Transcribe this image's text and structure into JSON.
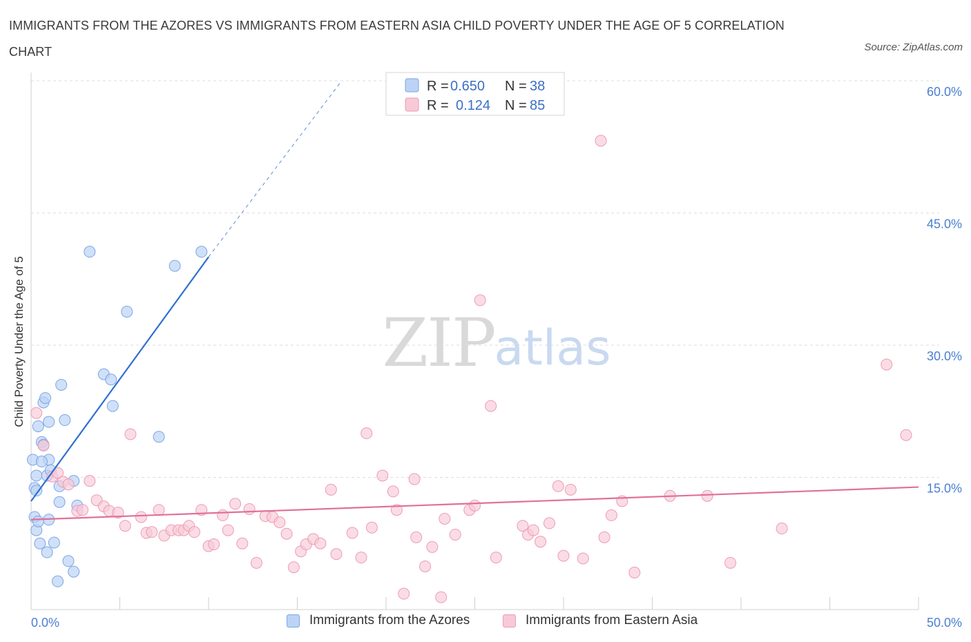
{
  "title": "IMMIGRANTS FROM THE AZORES VS IMMIGRANTS FROM EASTERN ASIA CHILD POVERTY UNDER THE AGE OF 5 CORRELATION CHART",
  "source": "Source: ZipAtlas.com",
  "watermark": {
    "zip": "ZIP",
    "atlas": "atlas"
  },
  "colors": {
    "blue_fill": "#bcd3f5",
    "blue_stroke": "#7aa6e6",
    "blue_line": "#2f6fcf",
    "pink_fill": "#f8c9d7",
    "pink_stroke": "#ee9bb5",
    "pink_line": "#e0709a",
    "tick_color": "#4a7fd0",
    "grid": "#dddddd"
  },
  "legend": {
    "rows": [
      {
        "r_label": "R =",
        "r_value": "0.650",
        "n_label": "N =",
        "n_value": "38"
      },
      {
        "r_label": "R =",
        "r_value": "0.124",
        "n_label": "N =",
        "n_value": "85"
      }
    ]
  },
  "chart_data": {
    "type": "scatter",
    "title": "IMMIGRANTS FROM THE AZORES VS IMMIGRANTS FROM EASTERN ASIA CHILD POVERTY UNDER THE AGE OF 5 CORRELATION CHART",
    "xlabel": "",
    "ylabel": "Child Poverty Under the Age of 5",
    "xlim": [
      0,
      50
    ],
    "ylim": [
      0,
      60
    ],
    "x_tick_labels": [
      "0.0%",
      "50.0%"
    ],
    "y_ticks": [
      15,
      30,
      45,
      60
    ],
    "y_tick_labels": [
      "15.0%",
      "30.0%",
      "45.0%",
      "60.0%"
    ],
    "grid": true,
    "legend_position": "top-center",
    "series": [
      {
        "name": "Immigrants from the Azores",
        "color": "#bcd3f5",
        "points": [
          [
            0.1,
            17.0
          ],
          [
            0.2,
            13.8
          ],
          [
            0.3,
            15.2
          ],
          [
            0.3,
            13.5
          ],
          [
            0.2,
            10.5
          ],
          [
            0.3,
            9.0
          ],
          [
            0.4,
            20.8
          ],
          [
            0.5,
            7.5
          ],
          [
            0.6,
            19.0
          ],
          [
            0.7,
            18.7
          ],
          [
            0.7,
            23.5
          ],
          [
            0.8,
            24.0
          ],
          [
            0.9,
            15.2
          ],
          [
            0.9,
            6.5
          ],
          [
            1.0,
            21.3
          ],
          [
            1.0,
            17.0
          ],
          [
            1.0,
            10.2
          ],
          [
            1.1,
            15.8
          ],
          [
            1.3,
            7.6
          ],
          [
            1.5,
            3.2
          ],
          [
            1.6,
            12.2
          ],
          [
            1.6,
            14.0
          ],
          [
            1.7,
            25.5
          ],
          [
            1.9,
            21.5
          ],
          [
            2.1,
            5.5
          ],
          [
            2.4,
            4.3
          ],
          [
            2.4,
            14.6
          ],
          [
            2.6,
            11.8
          ],
          [
            3.3,
            40.6
          ],
          [
            4.1,
            26.7
          ],
          [
            4.5,
            26.1
          ],
          [
            4.6,
            23.1
          ],
          [
            5.4,
            33.8
          ],
          [
            7.2,
            19.6
          ],
          [
            8.1,
            39.0
          ],
          [
            9.6,
            40.6
          ],
          [
            0.6,
            16.8
          ],
          [
            0.4,
            10.0
          ]
        ]
      },
      {
        "name": "Immigrants from Eastern Asia",
        "color": "#f8c9d7",
        "points": [
          [
            0.3,
            22.3
          ],
          [
            0.7,
            18.6
          ],
          [
            1.2,
            15.1
          ],
          [
            1.5,
            15.5
          ],
          [
            1.8,
            14.5
          ],
          [
            2.1,
            14.2
          ],
          [
            2.6,
            11.2
          ],
          [
            2.9,
            11.3
          ],
          [
            3.3,
            14.6
          ],
          [
            3.7,
            12.4
          ],
          [
            4.1,
            11.7
          ],
          [
            4.4,
            11.2
          ],
          [
            4.9,
            11.0
          ],
          [
            5.3,
            9.5
          ],
          [
            5.6,
            19.9
          ],
          [
            6.2,
            10.5
          ],
          [
            6.5,
            8.7
          ],
          [
            6.8,
            8.8
          ],
          [
            7.2,
            11.3
          ],
          [
            7.5,
            8.4
          ],
          [
            7.9,
            9.0
          ],
          [
            8.3,
            9.0
          ],
          [
            8.6,
            9.0
          ],
          [
            8.9,
            9.5
          ],
          [
            9.2,
            8.8
          ],
          [
            9.6,
            11.3
          ],
          [
            10.0,
            7.2
          ],
          [
            10.3,
            7.4
          ],
          [
            10.8,
            10.7
          ],
          [
            11.1,
            9.0
          ],
          [
            11.5,
            12.0
          ],
          [
            11.9,
            7.5
          ],
          [
            12.3,
            11.4
          ],
          [
            12.7,
            5.3
          ],
          [
            13.2,
            10.6
          ],
          [
            13.6,
            10.5
          ],
          [
            14.0,
            9.9
          ],
          [
            14.4,
            8.6
          ],
          [
            14.8,
            4.8
          ],
          [
            15.2,
            6.6
          ],
          [
            15.5,
            7.4
          ],
          [
            15.9,
            8.0
          ],
          [
            16.3,
            7.5
          ],
          [
            16.9,
            13.6
          ],
          [
            17.2,
            6.3
          ],
          [
            18.1,
            8.7
          ],
          [
            18.6,
            5.9
          ],
          [
            18.9,
            20.0
          ],
          [
            19.2,
            9.3
          ],
          [
            19.8,
            15.2
          ],
          [
            20.4,
            13.4
          ],
          [
            20.6,
            11.3
          ],
          [
            21.0,
            1.8
          ],
          [
            21.6,
            14.8
          ],
          [
            21.7,
            8.2
          ],
          [
            22.2,
            4.9
          ],
          [
            22.6,
            7.1
          ],
          [
            23.1,
            1.4
          ],
          [
            23.3,
            10.3
          ],
          [
            23.9,
            8.5
          ],
          [
            24.7,
            11.3
          ],
          [
            25.0,
            11.8
          ],
          [
            25.3,
            35.1
          ],
          [
            25.9,
            23.1
          ],
          [
            26.2,
            5.9
          ],
          [
            27.7,
            9.5
          ],
          [
            28.0,
            8.5
          ],
          [
            28.3,
            9.0
          ],
          [
            28.7,
            7.7
          ],
          [
            29.2,
            9.8
          ],
          [
            29.7,
            14.0
          ],
          [
            30.0,
            6.1
          ],
          [
            30.4,
            13.6
          ],
          [
            31.1,
            5.8
          ],
          [
            32.1,
            53.2
          ],
          [
            32.3,
            8.2
          ],
          [
            32.7,
            10.7
          ],
          [
            33.3,
            12.3
          ],
          [
            36.0,
            12.9
          ],
          [
            38.1,
            12.9
          ],
          [
            39.4,
            5.3
          ],
          [
            42.3,
            9.2
          ],
          [
            48.2,
            27.8
          ],
          [
            49.3,
            19.8
          ],
          [
            34.0,
            4.2
          ]
        ]
      }
    ],
    "trend_lines": [
      {
        "series": "Immigrants from the Azores",
        "x": [
          0.0,
          10.0
        ],
        "y": [
          12.3,
          40.0
        ],
        "dashed_extension_to": [
          17.5,
          60.0
        ]
      },
      {
        "series": "Immigrants from Eastern Asia",
        "x": [
          0.0,
          50.0
        ],
        "y": [
          10.2,
          13.9
        ]
      }
    ]
  }
}
